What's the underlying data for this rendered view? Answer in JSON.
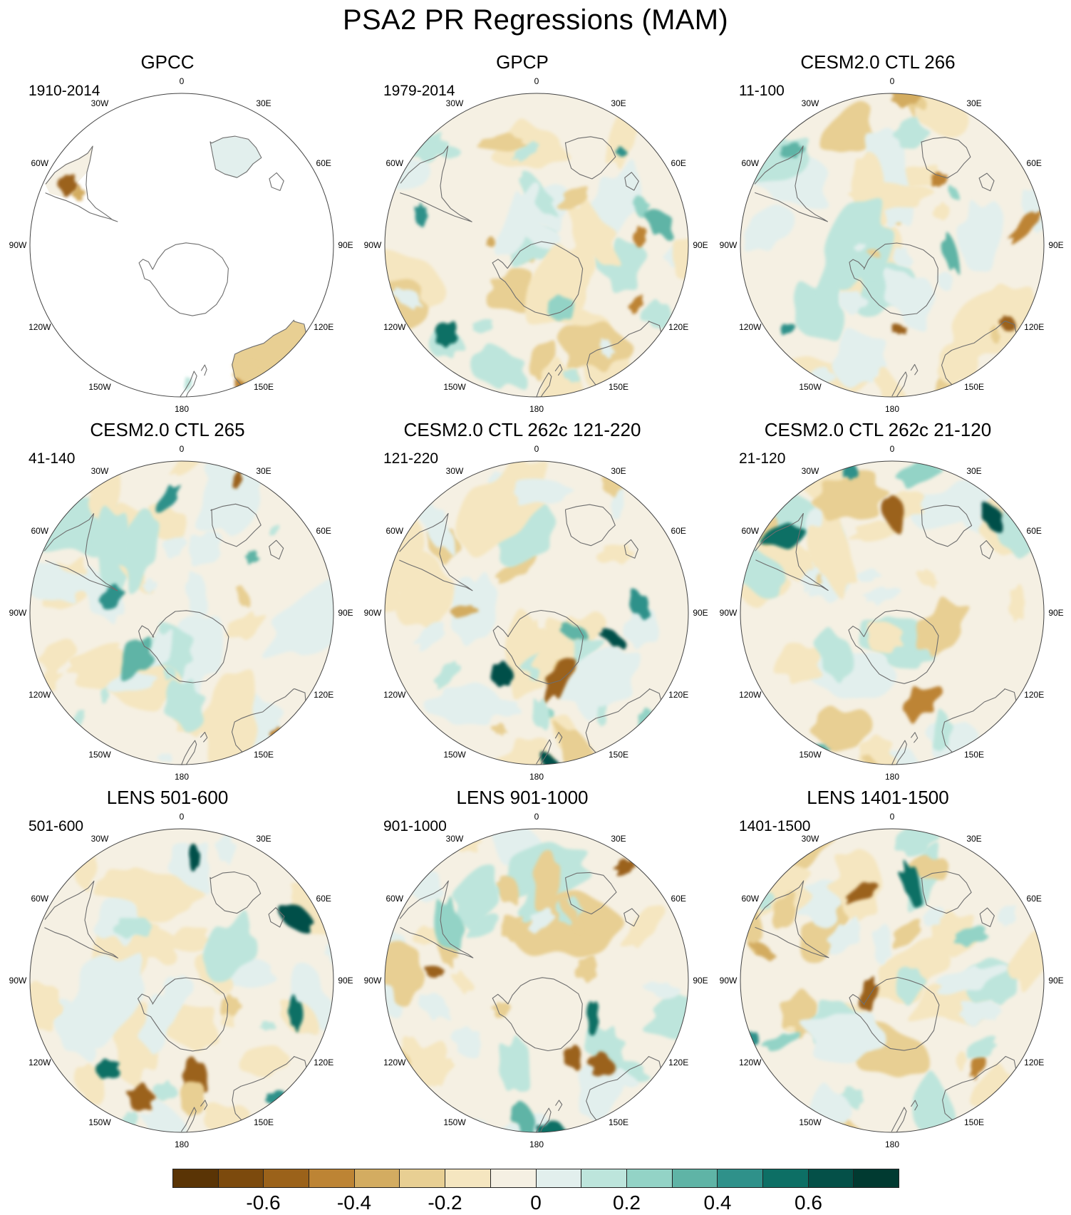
{
  "title": "PSA2 PR Regressions (MAM)",
  "map_data": {
    "projection": "polar-stereographic-south",
    "longitude_labels": [
      {
        "lon": 0,
        "text": "0"
      },
      {
        "lon": -30,
        "text": "30W"
      },
      {
        "lon": 30,
        "text": "30E"
      },
      {
        "lon": -60,
        "text": "60W"
      },
      {
        "lon": 60,
        "text": "60E"
      },
      {
        "lon": -90,
        "text": "90W"
      },
      {
        "lon": 90,
        "text": "90E"
      },
      {
        "lon": -120,
        "text": "120W"
      },
      {
        "lon": 120,
        "text": "120E"
      },
      {
        "lon": -150,
        "text": "150W"
      },
      {
        "lon": 150,
        "text": "150E"
      },
      {
        "lon": 180,
        "text": "180"
      }
    ],
    "panels": [
      {
        "title": "GPCC",
        "period": "1910-2014",
        "land_only": true
      },
      {
        "title": "GPCP",
        "period": "1979-2014",
        "land_only": false
      },
      {
        "title": "CESM2.0 CTL 266",
        "period": "11-100",
        "land_only": false
      },
      {
        "title": "CESM2.0 CTL 265",
        "period": "41-140",
        "land_only": false
      },
      {
        "title": "CESM2.0 CTL 262c 121-220",
        "period": "121-220",
        "land_only": false
      },
      {
        "title": "CESM2.0 CTL 262c 21-120",
        "period": "21-120",
        "land_only": false
      },
      {
        "title": "LENS 501-600",
        "period": "501-600",
        "land_only": false
      },
      {
        "title": "LENS 901-1000",
        "period": "901-1000",
        "land_only": false
      },
      {
        "title": "LENS 1401-1500",
        "period": "1401-1500",
        "land_only": false
      }
    ]
  },
  "colorbar": {
    "colors": [
      "#5a3405",
      "#7c4a0d",
      "#9b621a",
      "#bd8434",
      "#d3ac61",
      "#e8cf93",
      "#f5e6c0",
      "#f5f0e3",
      "#e2efed",
      "#bde5dc",
      "#93d3c6",
      "#5fb4a6",
      "#2f918a",
      "#0d6f65",
      "#045048",
      "#013a31"
    ],
    "tick_labels": [
      "-0.6",
      "-0.4",
      "-0.2",
      "0",
      "0.2",
      "0.4",
      "0.6"
    ]
  }
}
